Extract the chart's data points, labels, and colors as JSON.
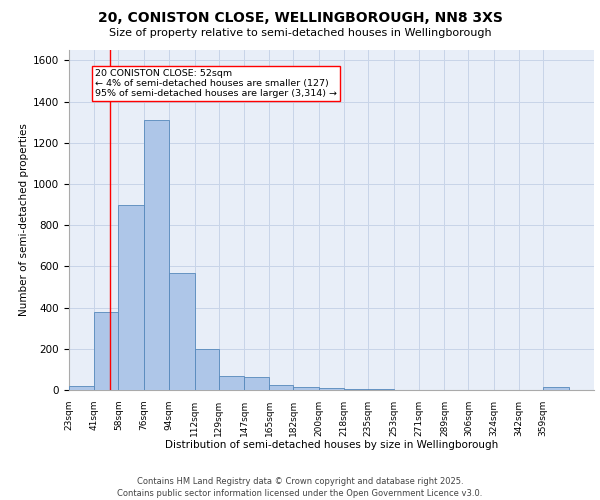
{
  "title1": "20, CONISTON CLOSE, WELLINGBOROUGH, NN8 3XS",
  "title2": "Size of property relative to semi-detached houses in Wellingborough",
  "xlabel": "Distribution of semi-detached houses by size in Wellingborough",
  "ylabel": "Number of semi-detached properties",
  "bins": [
    23,
    41,
    58,
    76,
    94,
    112,
    129,
    147,
    165,
    182,
    200,
    218,
    235,
    253,
    271,
    289,
    306,
    324,
    342,
    359,
    377
  ],
  "counts": [
    20,
    380,
    900,
    1310,
    570,
    200,
    70,
    65,
    25,
    15,
    8,
    5,
    3,
    2,
    1,
    1,
    0,
    0,
    0,
    14
  ],
  "bar_color": "#aec6e8",
  "bar_edge_color": "#5588bb",
  "grid_color": "#c8d4e8",
  "bg_color": "#e8eef8",
  "red_line_x": 52,
  "annotation_title": "20 CONISTON CLOSE: 52sqm",
  "annotation_line1": "← 4% of semi-detached houses are smaller (127)",
  "annotation_line2": "95% of semi-detached houses are larger (3,314) →",
  "footer1": "Contains HM Land Registry data © Crown copyright and database right 2025.",
  "footer2": "Contains public sector information licensed under the Open Government Licence v3.0.",
  "ylim": [
    0,
    1650
  ],
  "title1_fontsize": 10,
  "title2_fontsize": 8,
  "tick_label_fontsize": 6.5,
  "axis_label_fontsize": 7.5,
  "annotation_fontsize": 6.8,
  "footer_fontsize": 6
}
